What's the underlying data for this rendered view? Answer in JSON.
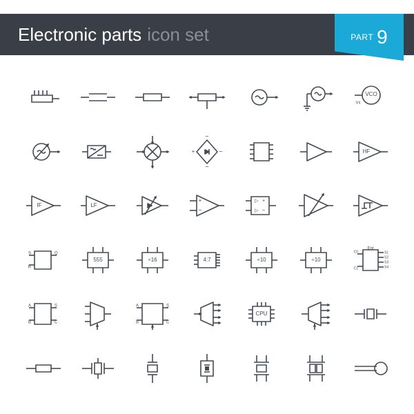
{
  "header": {
    "title_main": "Electronic parts",
    "title_sub": "icon set",
    "part_label": "PART",
    "part_number": "9",
    "bg": "#3a3e47",
    "title_main_color": "#ffffff",
    "title_sub_color": "#8a8e97",
    "badge_bg": "#1ba9d8"
  },
  "icon_style": {
    "stroke": "#454a54",
    "stroke_width": 1.6,
    "fill": "none",
    "text_color": "#454a54",
    "font_size": 8
  },
  "grid": {
    "cols": 7,
    "rows": 6
  },
  "icons": [
    {
      "name": "multi-pin-block",
      "label": ""
    },
    {
      "name": "resistor-open",
      "label": ""
    },
    {
      "name": "resistor-box",
      "label": ""
    },
    {
      "name": "resistor-tap",
      "label": ""
    },
    {
      "name": "oscillator-source",
      "label": ""
    },
    {
      "name": "oscillator-ground",
      "label": ""
    },
    {
      "name": "vco",
      "label": "VCO",
      "sub": "Vx"
    },
    {
      "name": "variable-source",
      "label": ""
    },
    {
      "name": "converter-box",
      "label": ""
    },
    {
      "name": "mixer-circle",
      "label": ""
    },
    {
      "name": "bridge-rectifier",
      "label": ""
    },
    {
      "name": "ic-8pin",
      "label": ""
    },
    {
      "name": "amp-triangle",
      "label": ""
    },
    {
      "name": "amp-hf",
      "label": "HF"
    },
    {
      "name": "amp-if",
      "label": "IF"
    },
    {
      "name": "amp-lf",
      "label": "LF"
    },
    {
      "name": "amp-adjustable",
      "label": ""
    },
    {
      "name": "opamp",
      "label": ""
    },
    {
      "name": "comparator-block",
      "label": ""
    },
    {
      "name": "amp-variable",
      "label": ""
    },
    {
      "name": "schmitt-amp",
      "label": ""
    },
    {
      "name": "sr-latch",
      "label": "",
      "pins": [
        "S",
        "R",
        "Q"
      ]
    },
    {
      "name": "timer-555",
      "label": "555"
    },
    {
      "name": "divider-16",
      "label": "÷16"
    },
    {
      "name": "ratio-47",
      "label": "4:7"
    },
    {
      "name": "divider-10a",
      "label": "÷10"
    },
    {
      "name": "divider-10b",
      "label": "÷10"
    },
    {
      "name": "encoder",
      "label": "Ent",
      "pins": [
        "C0",
        "C1",
        "S1",
        "S2",
        "S3",
        "S4"
      ]
    },
    {
      "name": "mux-block-abc",
      "label": "",
      "pins": [
        "A",
        "B",
        "S",
        "C"
      ]
    },
    {
      "name": "mux-trapezoid",
      "label": ""
    },
    {
      "name": "demux-block",
      "label": "",
      "pins": [
        "A",
        "B",
        "S",
        "C"
      ]
    },
    {
      "name": "demux-lines",
      "label": ""
    },
    {
      "name": "cpu",
      "label": "CPU"
    },
    {
      "name": "mux-out",
      "label": ""
    },
    {
      "name": "crystal-a",
      "label": ""
    },
    {
      "name": "crystal-b",
      "label": ""
    },
    {
      "name": "crystal-c",
      "label": ""
    },
    {
      "name": "crystal-d",
      "label": ""
    },
    {
      "name": "crystal-box",
      "label": ""
    },
    {
      "name": "crystal-dual",
      "label": ""
    },
    {
      "name": "crystal-dual2",
      "label": ""
    },
    {
      "name": "loop-antenna",
      "label": ""
    }
  ]
}
